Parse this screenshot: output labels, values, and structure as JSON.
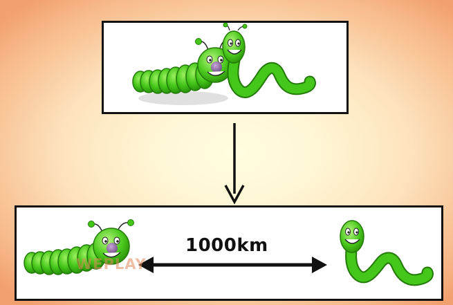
{
  "diagram": {
    "distance_label": "1000km",
    "watermark_text": "WEPLAY",
    "colors": {
      "worm_green": "#43c617",
      "worm_green_dark": "#2e9b0b",
      "nose": "#8a6a9a",
      "panel_border": "#111111",
      "background_center": "#fffde0",
      "background_edge": "#f2a06e"
    },
    "icons": {
      "caterpillar": "caterpillar-icon",
      "worm": "worm-icon",
      "down_arrow": "down-arrow-icon",
      "double_arrow": "double-arrow-icon"
    }
  }
}
